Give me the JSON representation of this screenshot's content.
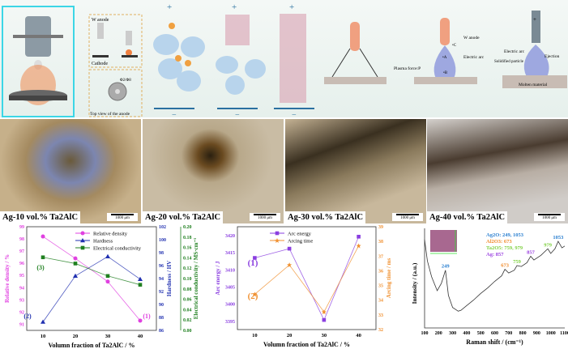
{
  "schematic": {
    "w_anode": "W anode",
    "cathode": "Cathode",
    "phi": "Φ2/Φ8",
    "top_view": "Top view of the anode",
    "plus": "+",
    "minus": "−",
    "w_anode2": "W anode",
    "point_c": "•C",
    "point_a": "•A",
    "point_b": "•B",
    "electric_arc": "Electric arc",
    "plasma_force": "Plasma force:P",
    "electric_arc2": "Electric arc",
    "ejection": "Ejection",
    "solidified": "Solidified particle",
    "molten": "Molten material",
    "plus2": "+"
  },
  "micrographs": [
    {
      "label": "Ag-10 vol.% Ta2AlC",
      "scale": "1000 μm"
    },
    {
      "label": "Ag-20 vol.% Ta2AlC",
      "scale": "1000 μm"
    },
    {
      "label": "Ag-30 vol.% Ta2AlC",
      "scale": "1000 μm"
    },
    {
      "label": "Ag-40 vol.% Ta2AlC",
      "scale": "1000 μm"
    }
  ],
  "chart_data": [
    {
      "type": "line",
      "xlabel": "Volumn fraction of Ta2AlC / %",
      "x": [
        10,
        20,
        30,
        40
      ],
      "xticks": [
        "10",
        "20",
        "30",
        "40"
      ],
      "series": [
        {
          "name": "Relative density",
          "axis": "Relative density / %",
          "values": [
            98.2,
            96.4,
            94.5,
            91.3
          ],
          "ylim": [
            90.5,
            99
          ],
          "ticks": [
            "91",
            "92",
            "93",
            "94",
            "95",
            "96",
            "97",
            "98",
            "99"
          ],
          "color": "#e040e0",
          "marker": "circle",
          "tag": "(1)"
        },
        {
          "name": "Hardness",
          "axis": "Hardness / HV",
          "values": [
            87.3,
            94.4,
            97.4,
            93.9
          ],
          "ylim": [
            86,
            102
          ],
          "ticks": [
            "86",
            "88",
            "90",
            "92",
            "94",
            "96",
            "98",
            "100",
            "102"
          ],
          "color": "#2030b0",
          "marker": "triangle",
          "tag": "(2)"
        },
        {
          "name": "Electrical conductivity",
          "axis": "Electrical conductivity / MS·cm⁻¹",
          "values": [
            0.141,
            0.129,
            0.105,
            0.088
          ],
          "ylim": [
            0,
            0.2
          ],
          "ticks": [
            "0.00",
            "0.02",
            "0.04",
            "0.06",
            "0.08",
            "0.10",
            "0.12",
            "0.14",
            "0.16",
            "0.18",
            "0.20"
          ],
          "color": "#208020",
          "marker": "square",
          "tag": "(3)"
        }
      ]
    },
    {
      "type": "line",
      "xlabel": "Volumn fraction of Ta2AlC / %",
      "x": [
        10,
        20,
        30,
        40
      ],
      "xticks": [
        "10",
        "20",
        "30",
        "40"
      ],
      "series": [
        {
          "name": "Arc energy",
          "axis": "Arc energy / J",
          "values": [
            3413.5,
            3416.2,
            3395.4,
            3419.7
          ],
          "ylim": [
            3392.6,
            3422.6
          ],
          "ticks": [
            "3395",
            "3400",
            "3405",
            "3410",
            "3415",
            "3420"
          ],
          "tickvals": [
            3395,
            3400,
            3405,
            3410,
            3415,
            3420
          ],
          "color": "#8a3ee0",
          "marker": "square",
          "tag": "(1)"
        },
        {
          "name": "Arcing time",
          "axis": "Arcing time / ms",
          "values": [
            34.4,
            36.4,
            33.2,
            37.7
          ],
          "ylim": [
            32,
            39
          ],
          "ticks": [
            "32",
            "33",
            "34",
            "35",
            "36",
            "37",
            "38",
            "39"
          ],
          "tickvals": [
            32,
            33,
            34,
            35,
            36,
            37,
            38,
            39
          ],
          "color": "#f09030",
          "marker": "star",
          "tag": "(2)"
        }
      ]
    },
    {
      "type": "line",
      "xlabel": "Raman shift / (cm⁻¹)",
      "ylabel": "Intensity / (a.u.)",
      "xlim": [
        100,
        1100
      ],
      "xticks": [
        "100",
        "200",
        "300",
        "400",
        "500",
        "600",
        "700",
        "800",
        "900",
        "1000",
        "1100"
      ],
      "x": [
        100,
        120,
        150,
        190,
        220,
        249,
        270,
        300,
        340,
        360,
        400,
        450,
        500,
        550,
        600,
        650,
        673,
        700,
        740,
        759,
        790,
        830,
        857,
        880,
        930,
        979,
        1000,
        1030,
        1053,
        1080,
        1100
      ],
      "values": [
        0.95,
        0.72,
        0.55,
        0.4,
        0.48,
        0.62,
        0.35,
        0.22,
        0.18,
        0.19,
        0.24,
        0.3,
        0.37,
        0.43,
        0.5,
        0.56,
        0.63,
        0.59,
        0.62,
        0.67,
        0.66,
        0.7,
        0.77,
        0.73,
        0.78,
        0.85,
        0.8,
        0.85,
        0.93,
        0.86,
        0.88
      ],
      "color": "#333333",
      "peaks": [
        {
          "x": 249,
          "label": "249",
          "color": "#2a7fd0"
        },
        {
          "x": 673,
          "label": "673",
          "color": "#f08a2a"
        },
        {
          "x": 759,
          "label": "759",
          "color": "#7fd040"
        },
        {
          "x": 857,
          "label": "857",
          "color": "#9a40e0"
        },
        {
          "x": 979,
          "label": "979",
          "color": "#7fd040"
        },
        {
          "x": 1053,
          "label": "1053",
          "color": "#2a7fd0"
        }
      ],
      "legend": [
        {
          "text": "Ag2O: 249, 1053",
          "color": "#2a7fd0"
        },
        {
          "text": "Al2O3: 673",
          "color": "#f08a2a"
        },
        {
          "text": "Ta2O5: 759, 979",
          "color": "#7fd040"
        },
        {
          "text": "Ag: 857",
          "color": "#9a40e0"
        }
      ]
    }
  ]
}
